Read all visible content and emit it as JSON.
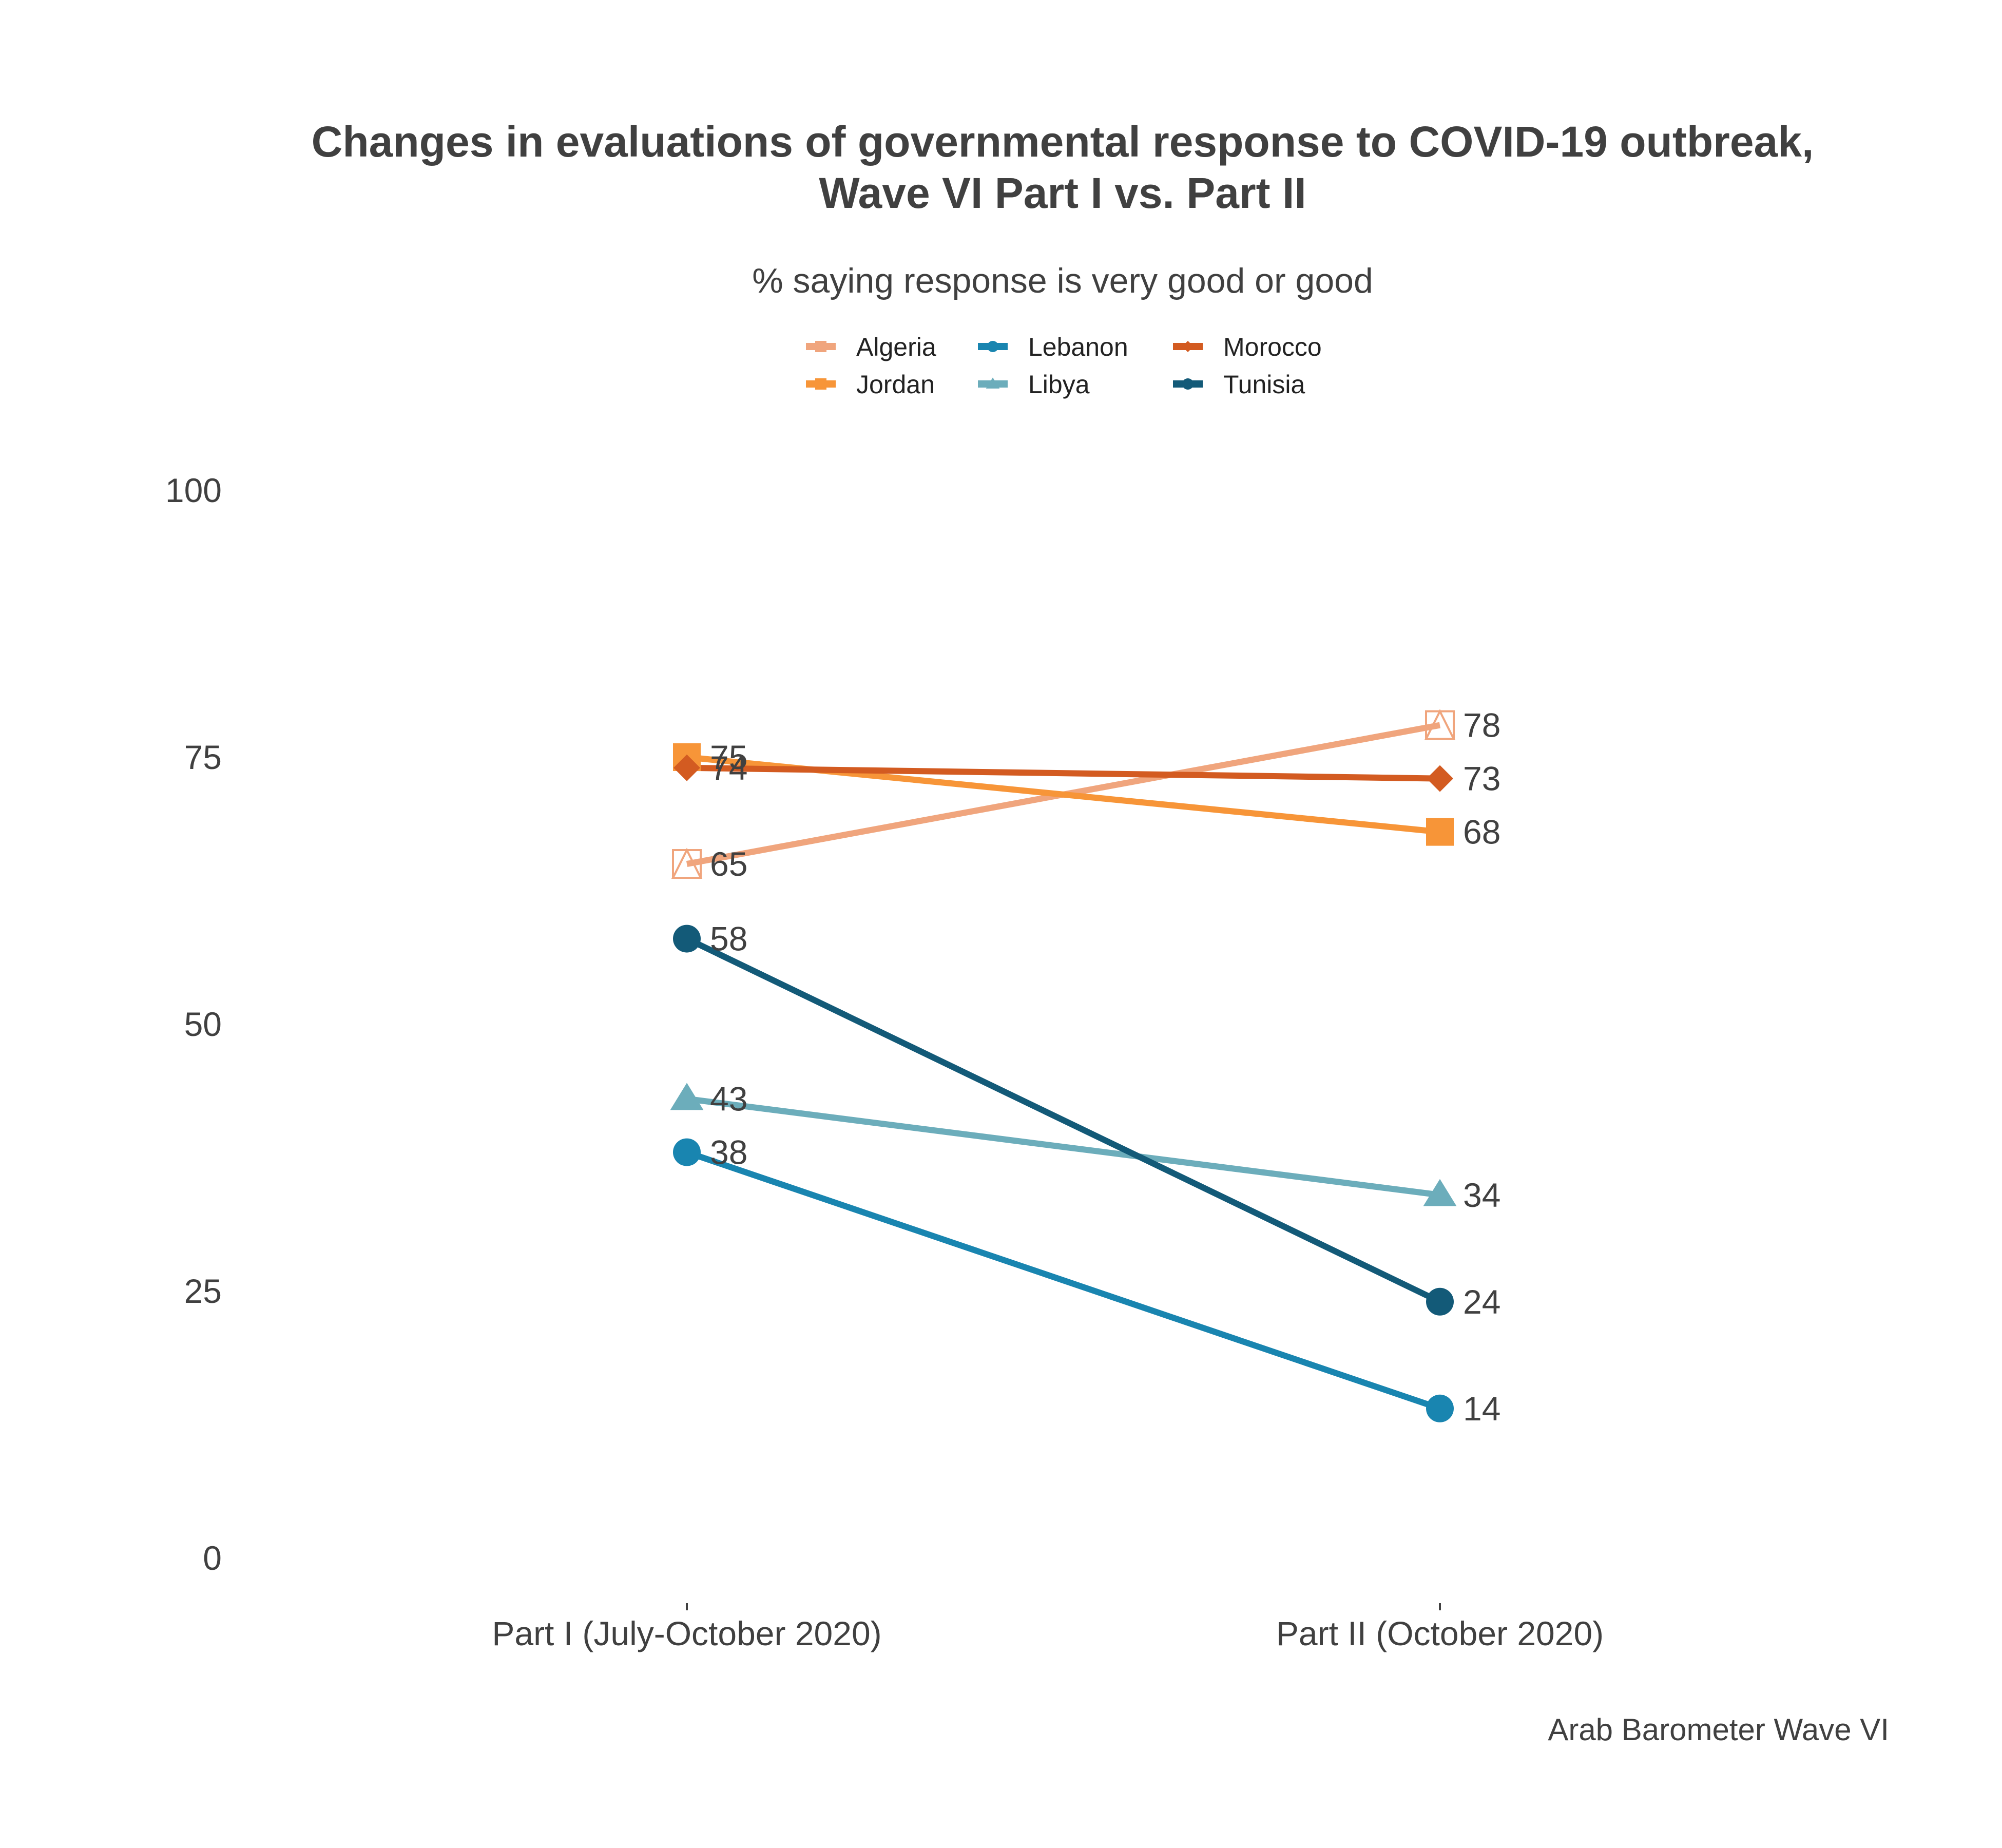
{
  "chart_data": {
    "type": "line",
    "title_line1": "Changes in evaluations of governmental response to COVID-19 outbreak,",
    "title_line2": "Wave VI Part I vs. Part II",
    "subtitle": "% saying response is very good or good",
    "caption": "Arab Barometer Wave VI",
    "categories": [
      "Part I (July-October 2020)",
      "Part II (October 2020)"
    ],
    "ylim": [
      0,
      100
    ],
    "yticks": [
      0,
      25,
      50,
      75,
      100
    ],
    "grid": false,
    "legend_position": "top",
    "series": [
      {
        "name": "Algeria",
        "values": [
          65,
          78
        ],
        "color": "#F0A57D",
        "marker": "open-square-triangle"
      },
      {
        "name": "Jordan",
        "values": [
          75,
          68
        ],
        "color": "#F79538",
        "marker": "square"
      },
      {
        "name": "Lebanon",
        "values": [
          38,
          14
        ],
        "color": "#1985B0",
        "marker": "circle"
      },
      {
        "name": "Libya",
        "values": [
          43,
          34
        ],
        "color": "#6CADBB",
        "marker": "triangle"
      },
      {
        "name": "Morocco",
        "values": [
          74,
          73
        ],
        "color": "#D35B21",
        "marker": "diamond"
      },
      {
        "name": "Tunisia",
        "values": [
          58,
          24
        ],
        "color": "#135A78",
        "marker": "circle"
      }
    ]
  }
}
